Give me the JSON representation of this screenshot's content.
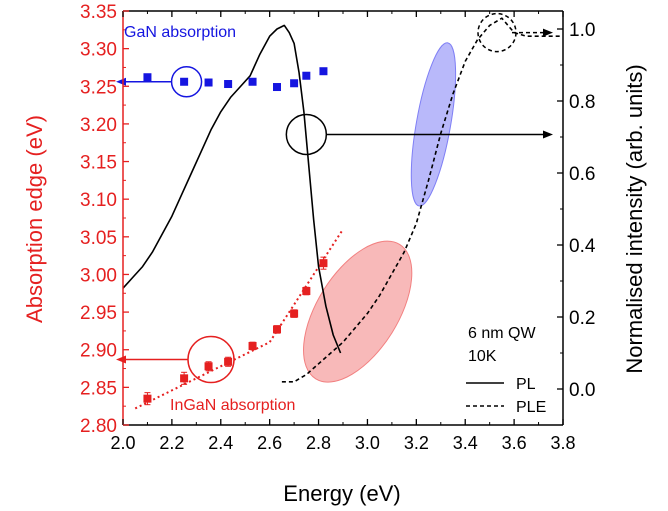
{
  "chart_data": {
    "type": "scatter",
    "title": "",
    "xlabel": "Energy (eV)",
    "ylabel_left": "Absorption edge (eV)",
    "ylabel_right": "Normalised intensity (arb. units)",
    "xlim": [
      2.0,
      3.8
    ],
    "ylim_left": [
      2.8,
      3.35
    ],
    "ylim_right": [
      -0.1,
      1.05
    ],
    "x_ticks": [
      "2.0",
      "2.2",
      "2.4",
      "2.6",
      "2.8",
      "3.0",
      "3.2",
      "3.4",
      "3.6",
      "3.8"
    ],
    "y_left_ticks": [
      "2.80",
      "2.85",
      "2.90",
      "2.95",
      "3.00",
      "3.05",
      "3.10",
      "3.15",
      "3.20",
      "3.25",
      "3.30",
      "3.35"
    ],
    "y_right_ticks": [
      "0.0",
      "0.2",
      "0.4",
      "0.6",
      "0.8",
      "1.0"
    ],
    "colors": {
      "gan": "#1515e0",
      "ingan": "#e52020",
      "pl": "#000000",
      "ple": "#000000",
      "left_axis": "#e52020"
    },
    "annotations": {
      "gan_label": "GaN absorption",
      "ingan_label": "InGaN absorption",
      "sample_line1": "6 nm QW",
      "sample_line2": "10K",
      "legend_pl": "PL",
      "legend_ple": "PLE"
    },
    "series": [
      {
        "name": "GaN absorption",
        "axis": "left",
        "marker": "square",
        "x": [
          2.1,
          2.25,
          2.35,
          2.43,
          2.53,
          2.63,
          2.7,
          2.75,
          2.82
        ],
        "y": [
          3.262,
          3.256,
          3.255,
          3.253,
          3.256,
          3.249,
          3.254,
          3.264,
          3.27
        ]
      },
      {
        "name": "InGaN absorption",
        "axis": "left",
        "marker": "square",
        "x": [
          2.1,
          2.25,
          2.35,
          2.43,
          2.53,
          2.63,
          2.7,
          2.75,
          2.82
        ],
        "y": [
          2.835,
          2.862,
          2.878,
          2.884,
          2.905,
          2.927,
          2.948,
          2.978,
          3.015
        ],
        "yerr": [
          0.008,
          0.008,
          0.006,
          0.006,
          0.005,
          0.005,
          0.005,
          0.005,
          0.008
        ]
      },
      {
        "name": "InGaN absorption fit",
        "axis": "left",
        "style": "dotted",
        "x": [
          2.05,
          2.6,
          2.9
        ],
        "y": [
          2.822,
          2.91,
          3.06
        ]
      },
      {
        "name": "PL",
        "axis": "right",
        "style": "solid",
        "x": [
          2.0,
          2.04,
          2.08,
          2.12,
          2.16,
          2.2,
          2.24,
          2.28,
          2.32,
          2.36,
          2.4,
          2.44,
          2.48,
          2.52,
          2.56,
          2.6,
          2.63,
          2.66,
          2.68,
          2.7,
          2.72,
          2.74,
          2.76,
          2.78,
          2.8,
          2.83,
          2.86,
          2.89
        ],
        "y": [
          0.28,
          0.31,
          0.34,
          0.38,
          0.43,
          0.48,
          0.54,
          0.6,
          0.66,
          0.72,
          0.77,
          0.81,
          0.84,
          0.87,
          0.93,
          0.98,
          1.0,
          1.01,
          0.99,
          0.96,
          0.88,
          0.77,
          0.62,
          0.47,
          0.34,
          0.23,
          0.15,
          0.1
        ]
      },
      {
        "name": "PLE",
        "axis": "right",
        "style": "dashed",
        "x": [
          2.65,
          2.7,
          2.75,
          2.8,
          2.85,
          2.9,
          2.95,
          3.0,
          3.05,
          3.1,
          3.15,
          3.2,
          3.25,
          3.3,
          3.35,
          3.4,
          3.45,
          3.5,
          3.55,
          3.6,
          3.65,
          3.7,
          3.75,
          3.8
        ],
        "y": [
          0.02,
          0.02,
          0.04,
          0.07,
          0.1,
          0.13,
          0.17,
          0.21,
          0.26,
          0.32,
          0.38,
          0.46,
          0.58,
          0.71,
          0.82,
          0.91,
          0.97,
          1.01,
          1.03,
          0.99,
          0.98,
          0.98,
          0.98,
          0.98
        ]
      }
    ],
    "highlights": [
      {
        "name": "InGaN absorption edge region",
        "color": "#f28080",
        "axis": "right",
        "cx": 2.96,
        "cy": 0.215,
        "rx_data": 0.165,
        "ry_data": 0.22
      },
      {
        "name": "GaN absorption edge region",
        "color": "#7f7ff5",
        "axis": "right",
        "cx": 3.27,
        "cy": 0.735,
        "rx_data": 0.07,
        "ry_data": 0.23
      }
    ],
    "circles": [
      {
        "name": "gan-axis-circle",
        "color": "#1515e0",
        "axis": "left",
        "x": 2.26,
        "y": 3.256,
        "arrow_to_x": 2.0
      },
      {
        "name": "ingan-axis-circle",
        "color": "#e52020",
        "axis": "left",
        "x": 2.36,
        "y": 2.887,
        "arrow_to_x": 2.0
      },
      {
        "name": "pl-axis-circle",
        "color": "#000000",
        "axis": "left",
        "x": 2.75,
        "y": 3.186,
        "arrow_to_x": 3.8
      },
      {
        "name": "ple-axis-circle",
        "color": "#000000",
        "axis": "right",
        "x": 3.53,
        "y": 0.99,
        "arrow_to_x": 3.8
      }
    ]
  }
}
